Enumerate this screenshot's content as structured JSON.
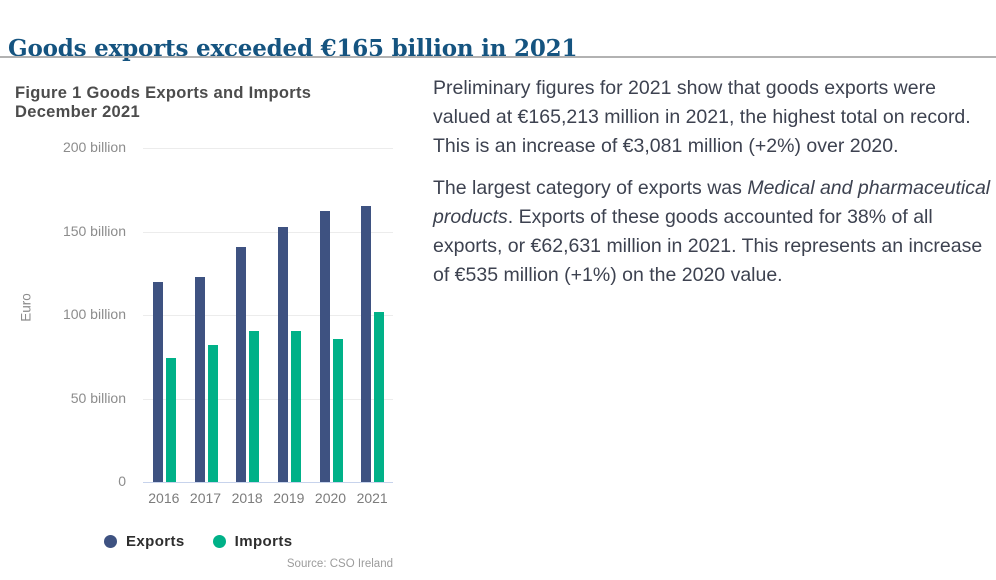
{
  "page": {
    "title": "Goods exports exceeded €165 billion in 2021"
  },
  "article": {
    "paragraph1": "Preliminary figures for 2021 show that goods exports were valued at €165,213 million in 2021, the highest total on record. This is an increase of €3,081 million (+2%) over 2020.",
    "paragraph2_prefix": "The largest category of exports was ",
    "paragraph2_italic": "Medical and pharmaceutical products",
    "paragraph2_suffix": ". Exports of these goods accounted for 38% of all exports, or €62,631 million in 2021. This represents an increase of €535 million (+1%) on the 2020 value."
  },
  "chart_data": {
    "type": "bar",
    "title": "Figure 1 Goods Exports and Imports December 2021",
    "categories": [
      "2016",
      "2017",
      "2018",
      "2019",
      "2020",
      "2021"
    ],
    "series": [
      {
        "name": "Exports",
        "color": "#3e5281",
        "values": [
          119.8,
          122.7,
          140.8,
          152.5,
          162.1,
          165.2
        ]
      },
      {
        "name": "Imports",
        "color": "#00b188",
        "values": [
          74.2,
          82.0,
          90.4,
          90.2,
          85.8,
          102.0
        ]
      }
    ],
    "unit": "billion euro",
    "ylabel": "Euro",
    "y_ticks": [
      {
        "value": 200,
        "label": "200 billion"
      },
      {
        "value": 150,
        "label": "150 billion"
      },
      {
        "value": 100,
        "label": "100 billion"
      },
      {
        "value": 50,
        "label": "50 billion"
      },
      {
        "value": 0,
        "label": "0"
      }
    ],
    "ylim": [
      0,
      200
    ],
    "grid": true,
    "legend_position": "bottom",
    "source": "Source: CSO Ireland"
  },
  "colors": {
    "title": "#155480",
    "rule": "#b2b2b2",
    "body_text": "#3d4250",
    "axis_text": "#8c8c8c",
    "baseline": "#c7d3ec",
    "gridline": "#ececec"
  }
}
